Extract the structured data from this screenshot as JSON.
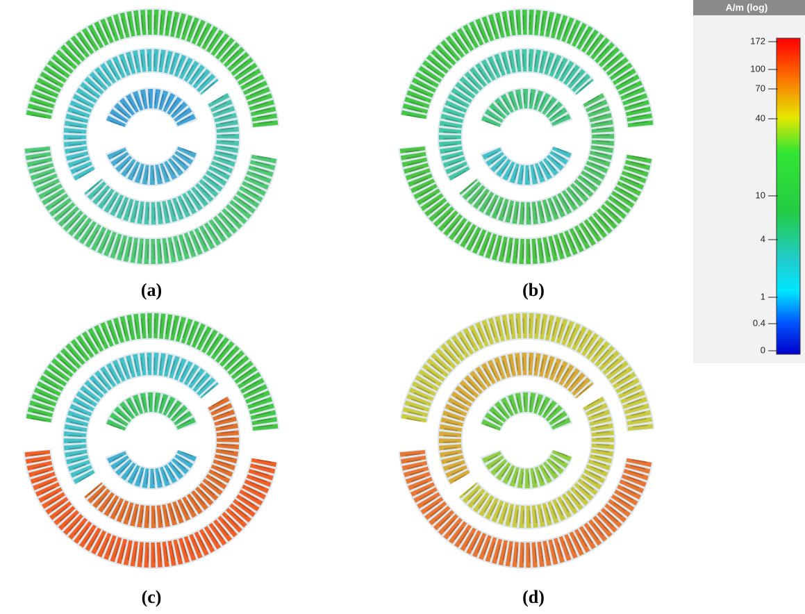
{
  "panels": [
    {
      "label": "(a)"
    },
    {
      "label": "(b)"
    },
    {
      "label": "(c)"
    },
    {
      "label": "(d)"
    }
  ],
  "colorbar": {
    "title": "A/m (log)",
    "ticks": [
      172,
      100,
      70,
      40,
      10,
      4,
      1,
      0.4,
      0
    ]
  }
}
